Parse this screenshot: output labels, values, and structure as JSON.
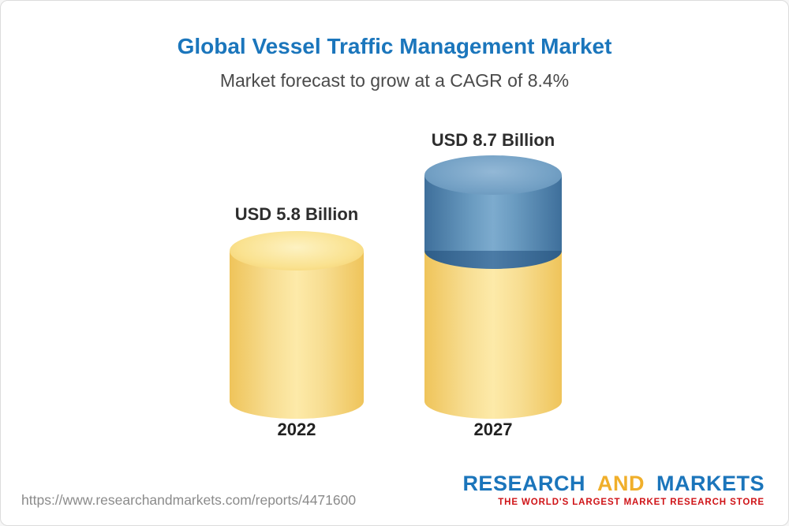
{
  "header": {
    "title": "Global Vessel Traffic Management Market",
    "subtitle": "Market forecast to grow at a CAGR of 8.4%"
  },
  "chart_data": {
    "type": "bar",
    "title": "Global Vessel Traffic Management Market",
    "subtitle": "Market forecast to grow at a CAGR of 8.4%",
    "cagr_percent": 8.4,
    "unit": "USD Billion",
    "categories": [
      "2022",
      "2027"
    ],
    "values": [
      5.8,
      8.7
    ],
    "value_labels": [
      "USD 5.8 Billion",
      "USD 8.7 Billion"
    ],
    "bar_colors": {
      "base_segment": "#f6d57c",
      "growth_segment": "#5c8cb4"
    },
    "ylim": [
      0,
      9.5
    ],
    "grid": false,
    "legend": false
  },
  "footer": {
    "url": "https://www.researchandmarkets.com/reports/4471600",
    "logo": {
      "research": "RESEARCH",
      "and": "AND",
      "markets": "MARKETS",
      "tagline": "THE WORLD'S LARGEST MARKET RESEARCH STORE",
      "blue": "#1b75bb",
      "gold": "#f0af2b",
      "red": "#cf1317"
    }
  }
}
